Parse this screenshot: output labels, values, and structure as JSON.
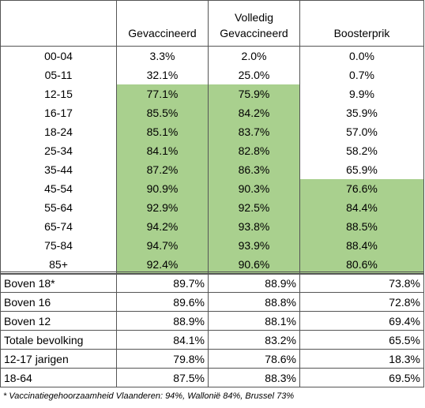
{
  "table": {
    "header": [
      "Gevaccineerd",
      "Volledig Gevaccineerd",
      "Boosterprik"
    ],
    "rows": [
      [
        "00-04",
        "3.3%",
        "2.0%",
        "0.0%"
      ],
      [
        "05-11",
        "32.1%",
        "25.0%",
        "0.7%"
      ],
      [
        "12-15",
        "77.1%",
        "75.9%",
        "9.9%"
      ],
      [
        "16-17",
        "85.5%",
        "84.2%",
        "35.9%"
      ],
      [
        "18-24",
        "85.1%",
        "83.7%",
        "57.0%"
      ],
      [
        "25-34",
        "84.1%",
        "82.8%",
        "58.2%"
      ],
      [
        "35-44",
        "87.2%",
        "86.3%",
        "65.9%"
      ],
      [
        "45-54",
        "90.9%",
        "90.3%",
        "76.6%"
      ],
      [
        "55-64",
        "92.9%",
        "92.5%",
        "84.4%"
      ],
      [
        "65-74",
        "94.2%",
        "93.8%",
        "88.5%"
      ],
      [
        "75-84",
        "94.7%",
        "93.9%",
        "88.4%"
      ],
      [
        "85+",
        "92.4%",
        "90.6%",
        "80.6%"
      ]
    ]
  },
  "summary": {
    "rows": [
      [
        "Boven 18*",
        "89.7%",
        "88.9%",
        "73.8%"
      ],
      [
        "Boven 16",
        "89.6%",
        "88.8%",
        "72.8%"
      ],
      [
        "Boven 12",
        "88.9%",
        "88.1%",
        "69.4%"
      ],
      [
        "Totale bevolking",
        "84.1%",
        "83.2%",
        "65.5%"
      ],
      [
        "12-17 jarigen",
        "79.8%",
        "78.6%",
        "18.3%"
      ],
      [
        "18-64",
        "87.5%",
        "88.3%",
        "69.5%"
      ]
    ]
  },
  "footnote": "* Vaccinatiegehoorzaamheid Vlaanderen: 94%, Wallonië 84%, Brussel 73%"
}
